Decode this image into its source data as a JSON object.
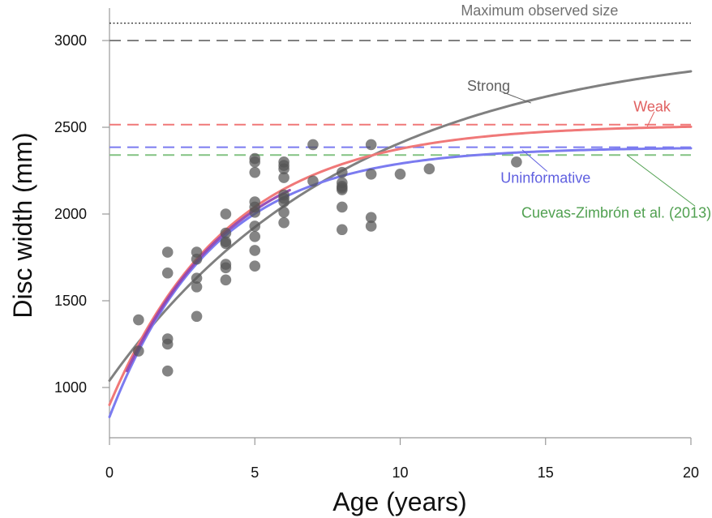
{
  "chart_data": {
    "type": "scatter",
    "title": "",
    "xlabel": "Age (years)",
    "ylabel": "Disc width (mm)",
    "xlim": [
      0,
      20
    ],
    "ylim": [
      700,
      3200
    ],
    "xticks": [
      0,
      5,
      10,
      15,
      20
    ],
    "yticks": [
      1000,
      1500,
      2000,
      2500,
      3000
    ],
    "grid": false,
    "points": [
      [
        1,
        1390
      ],
      [
        1,
        1210
      ],
      [
        2,
        1780
      ],
      [
        2,
        1660
      ],
      [
        2,
        1280
      ],
      [
        2,
        1250
      ],
      [
        2,
        1095
      ],
      [
        3,
        1780
      ],
      [
        3,
        1740
      ],
      [
        3,
        1630
      ],
      [
        3,
        1580
      ],
      [
        3,
        1410
      ],
      [
        4,
        2000
      ],
      [
        4,
        1890
      ],
      [
        4,
        1840
      ],
      [
        4,
        1830
      ],
      [
        4,
        1710
      ],
      [
        4,
        1690
      ],
      [
        4,
        1620
      ],
      [
        5,
        2320
      ],
      [
        5,
        2300
      ],
      [
        5,
        2240
      ],
      [
        5,
        2070
      ],
      [
        5,
        2040
      ],
      [
        5,
        2010
      ],
      [
        5,
        1930
      ],
      [
        5,
        1870
      ],
      [
        5,
        1790
      ],
      [
        5,
        1700
      ],
      [
        6,
        2300
      ],
      [
        6,
        2280
      ],
      [
        6,
        2260
      ],
      [
        6,
        2210
      ],
      [
        6,
        2110
      ],
      [
        6,
        2090
      ],
      [
        6,
        2070
      ],
      [
        6,
        2010
      ],
      [
        6,
        1950
      ],
      [
        7,
        2400
      ],
      [
        7,
        2190
      ],
      [
        8,
        2240
      ],
      [
        8,
        2180
      ],
      [
        8,
        2160
      ],
      [
        8,
        2150
      ],
      [
        8,
        2140
      ],
      [
        8,
        2040
      ],
      [
        8,
        1910
      ],
      [
        9,
        2400
      ],
      [
        9,
        2230
      ],
      [
        9,
        1980
      ],
      [
        9,
        1930
      ],
      [
        10,
        2230
      ],
      [
        11,
        2260
      ],
      [
        14,
        2300
      ]
    ],
    "curves": [
      {
        "name": "Strong",
        "color": "#808080",
        "L_inf": 3000,
        "L0": 1040,
        "k": 0.12
      },
      {
        "name": "Weak",
        "color": "#f07878",
        "L_inf": 2515,
        "L0": 900,
        "k": 0.245
      },
      {
        "name": "Uninformative",
        "color": "#7b7bf0",
        "L_inf": 2385,
        "L0": 830,
        "k": 0.28
      }
    ],
    "overlap_segment": {
      "color": "#8e3fb0",
      "x_range": [
        0.6,
        6.2
      ],
      "L_inf": 2450,
      "L0": 865,
      "k": 0.262
    },
    "hlines": [
      {
        "name": "Maximum observed size",
        "y": 3100,
        "color": "#333333",
        "style": "dotted"
      },
      {
        "name": "Strong asymptote",
        "y": 3000,
        "color": "#808080",
        "style": "dashed"
      },
      {
        "name": "Weak asymptote",
        "y": 2515,
        "color": "#f07878",
        "style": "dashed"
      },
      {
        "name": "Uninformative asymptote",
        "y": 2385,
        "color": "#7b7bf0",
        "style": "dashed"
      },
      {
        "name": "Cuevas-Zimbrón et al. (2013)",
        "y": 2340,
        "color": "#82c282",
        "style": "dashed"
      }
    ],
    "annotations": [
      {
        "text": "Maximum observed size",
        "color": "#707070",
        "anchor": "end",
        "x": 17.5,
        "y": 3145
      },
      {
        "text": "Strong",
        "color": "#606060",
        "anchor": "start",
        "x": 12.3,
        "y": 2710,
        "pointer": [
          14.5,
          2640
        ]
      },
      {
        "text": "Weak",
        "color": "#e06060",
        "anchor": "end",
        "x": 19.3,
        "y": 2590,
        "pointer": [
          18.5,
          2505
        ]
      },
      {
        "text": "Uninformative",
        "color": "#6060e0",
        "anchor": "middle",
        "x": 15.0,
        "y": 2180,
        "pointer": [
          14.2,
          2370
        ]
      },
      {
        "text": "Cuevas-Zimbrón et al. (2013)",
        "color": "#50a050",
        "anchor": "end",
        "x": 20.7,
        "y": 1980,
        "pointer": [
          17.8,
          2340
        ]
      }
    ],
    "point_color": "#555555",
    "point_opacity": 0.72
  }
}
